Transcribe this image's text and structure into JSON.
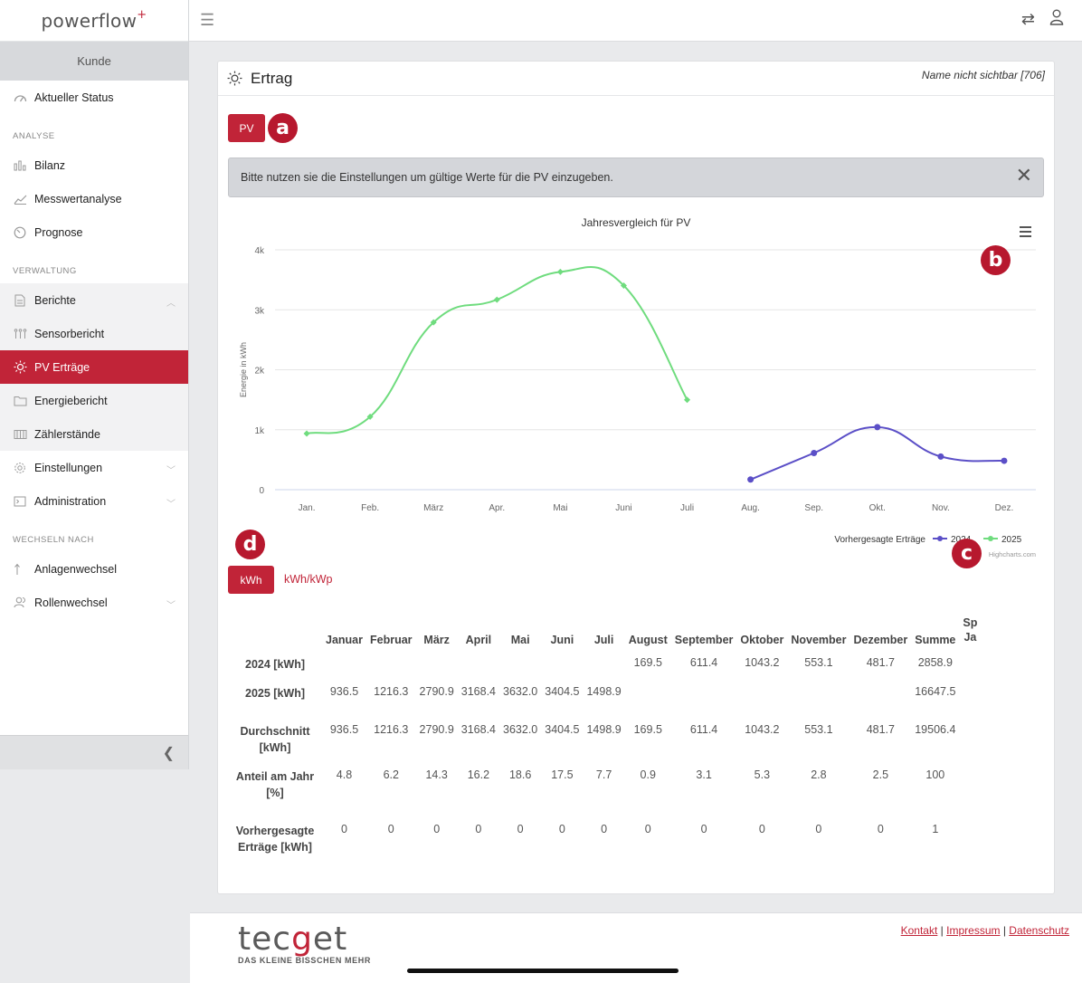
{
  "app": {
    "logo_text": "powerflow",
    "logo_mark": "+"
  },
  "sidebar": {
    "customer_label": "Kunde",
    "status": {
      "label": "Aktueller Status",
      "icon": "gauge-icon"
    },
    "sections": [
      {
        "label": "ANALYSE"
      },
      {
        "label": "VERWALTUNG"
      },
      {
        "label": "WECHSELN NACH"
      }
    ],
    "analyse_items": [
      {
        "label": "Bilanz",
        "icon": "bar-chart-icon"
      },
      {
        "label": "Messwertanalyse",
        "icon": "line-chart-icon"
      },
      {
        "label": "Prognose",
        "icon": "timer-icon"
      }
    ],
    "verwaltung_items": [
      {
        "label": "Berichte",
        "icon": "document-icon"
      },
      {
        "label": "Sensorbericht",
        "icon": "sensor-icon"
      },
      {
        "label": "PV Erträge",
        "icon": "sun-icon"
      },
      {
        "label": "Energiebericht",
        "icon": "folder-icon"
      },
      {
        "label": "Zählerstände",
        "icon": "meter-icon"
      },
      {
        "label": "Einstellungen",
        "icon": "gear-icon"
      },
      {
        "label": "Administration",
        "icon": "terminal-icon"
      }
    ],
    "switch_items": [
      {
        "label": "Anlagenwechsel",
        "icon": "arrow-up-icon"
      },
      {
        "label": "Rollenwechsel",
        "icon": "users-icon"
      }
    ]
  },
  "card": {
    "title": "Ertrag",
    "header_right": "Name nicht sichtbar [706]",
    "pv_button": "PV",
    "alert_text": "Bitte nutzen sie die Einstellungen um gültige Werte für die PV einzugeben.",
    "markers": {
      "a": "a",
      "b": "b",
      "c": "c",
      "d": "d"
    },
    "unit_kwh": "kWh",
    "unit_kwp": "kWh/kWp"
  },
  "chart_data": {
    "type": "line",
    "title": "Jahresvergleich für PV",
    "ylabel": "Energie in kWh",
    "xlabel": "",
    "categories": [
      "Jan.",
      "Feb.",
      "März",
      "Apr.",
      "Mai",
      "Juni",
      "Juli",
      "Aug.",
      "Sep.",
      "Okt.",
      "Nov.",
      "Dez."
    ],
    "yticks": [
      "0",
      "1k",
      "2k",
      "3k",
      "4k"
    ],
    "ylim": [
      0,
      4000
    ],
    "grid": true,
    "legend": {
      "placement": "bottom-right",
      "prefix": "Vorhergesagte Erträge"
    },
    "credit": "Highcharts.com",
    "series": [
      {
        "name": "2024",
        "color": "#5b4fc7",
        "values": [
          null,
          null,
          null,
          null,
          null,
          null,
          null,
          169.5,
          611.4,
          1043.2,
          553.1,
          481.7
        ]
      },
      {
        "name": "2025",
        "color": "#6fdc7e",
        "values": [
          936.5,
          1216.3,
          2790.9,
          3168.4,
          3632.0,
          3404.5,
          1498.9,
          null,
          null,
          null,
          null,
          null
        ]
      }
    ]
  },
  "table": {
    "headers": [
      "",
      "Januar",
      "Februar",
      "März",
      "April",
      "Mai",
      "Juni",
      "Juli",
      "August",
      "September",
      "Oktober",
      "November",
      "Dezember",
      "Summe",
      "Sp Ja"
    ],
    "rows": [
      {
        "label": "2024 [kWh]",
        "cells": [
          "",
          "",
          "",
          "",
          "",
          "",
          "",
          "169.5",
          "611.4",
          "1043.2",
          "553.1",
          "481.7",
          "2858.9",
          ""
        ]
      },
      {
        "label": "2025 [kWh]",
        "cells": [
          "936.5",
          "1216.3",
          "2790.9",
          "3168.4",
          "3632.0",
          "3404.5",
          "1498.9",
          "",
          "",
          "",
          "",
          "",
          "16647.5",
          ""
        ]
      },
      {
        "label": "Durchschnitt [kWh]",
        "cells": [
          "936.5",
          "1216.3",
          "2790.9",
          "3168.4",
          "3632.0",
          "3404.5",
          "1498.9",
          "169.5",
          "611.4",
          "1043.2",
          "553.1",
          "481.7",
          "19506.4",
          ""
        ]
      },
      {
        "label": "Anteil am Jahr [%]",
        "cells": [
          "4.8",
          "6.2",
          "14.3",
          "16.2",
          "18.6",
          "17.5",
          "7.7",
          "0.9",
          "3.1",
          "5.3",
          "2.8",
          "2.5",
          "100",
          ""
        ]
      },
      {
        "label": "Vorhergesagte Erträge [kWh]",
        "cells": [
          "0",
          "0",
          "0",
          "0",
          "0",
          "0",
          "0",
          "0",
          "0",
          "0",
          "0",
          "0",
          "1",
          ""
        ]
      }
    ]
  },
  "footer": {
    "brand_left": "tec",
    "brand_mid": "g",
    "brand_right": "et",
    "slogan": "DAS KLEINE BISSCHEN MEHR",
    "links": [
      "Kontakt",
      "Impressum",
      "Datenschutz"
    ],
    "separator": "|"
  },
  "colors": {
    "accent": "#c12438",
    "series_2024": "#5b4fc7",
    "series_2025": "#6fdc7e"
  }
}
